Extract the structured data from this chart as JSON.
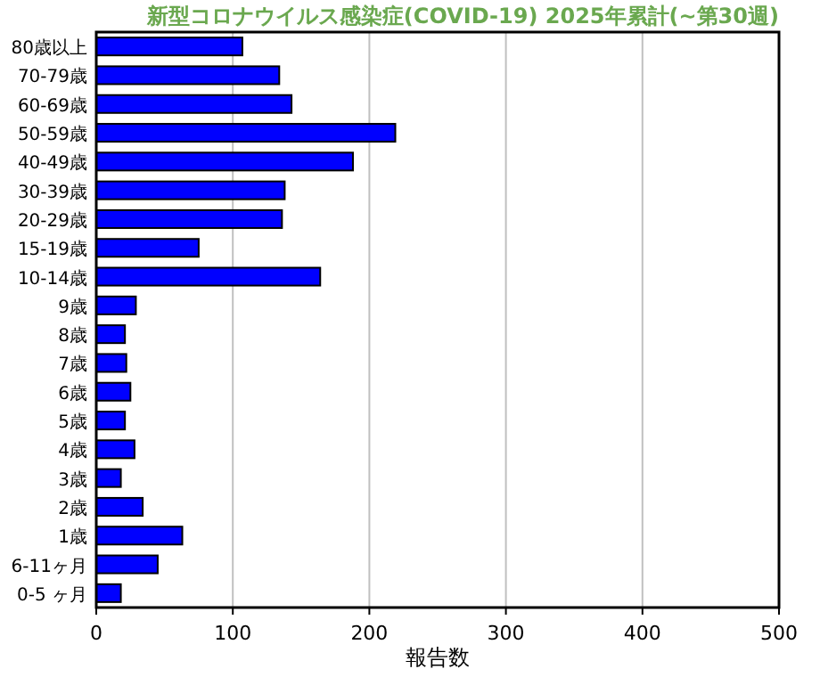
{
  "chart_data": {
    "type": "bar",
    "orientation": "horizontal",
    "title": "新型コロナウイルス感染症(COVID-19) 2025年累計(~第30週)",
    "xlabel": "報告数",
    "categories": [
      "80歳以上",
      "70-79歳",
      "60-69歳",
      "50-59歳",
      "40-49歳",
      "30-39歳",
      "20-29歳",
      "15-19歳",
      "10-14歳",
      "9歳",
      "8歳",
      "7歳",
      "6歳",
      "5歳",
      "4歳",
      "3歳",
      "2歳",
      "1歳",
      "6-11ヶ月",
      "0-5 ヶ月"
    ],
    "values": [
      107,
      134,
      143,
      219,
      188,
      138,
      136,
      75,
      164,
      29,
      21,
      22,
      25,
      21,
      28,
      18,
      34,
      63,
      45,
      18
    ],
    "color": "#0000ff",
    "xlim": [
      0,
      500
    ],
    "xticks": [
      0,
      100,
      200,
      300,
      400,
      500
    ],
    "grid": "x"
  }
}
